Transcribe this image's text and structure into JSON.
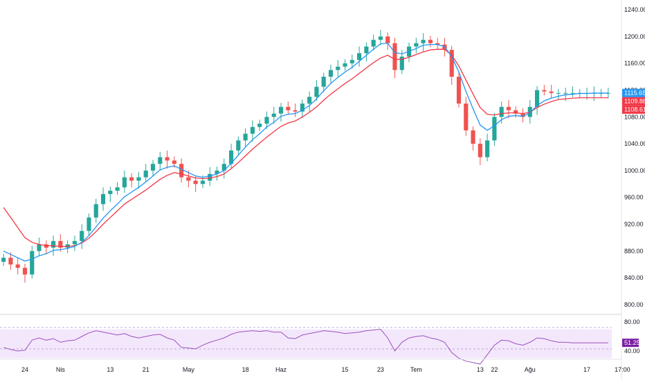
{
  "colors": {
    "background": "#ffffff",
    "up_candle": "#26a69a",
    "down_candle": "#ef5350",
    "ema_fast": "#2196f3",
    "ema_slow": "#f23645",
    "rsi_line": "#9c4fbd",
    "rsi_band": "#f3e8fb",
    "rsi_badge": "#7b1fa2",
    "axis_text": "#131722",
    "pane_separator": "#d1d4dc",
    "scale_border": "#e0e3eb"
  },
  "price_scale": {
    "min": 800,
    "max": 1240,
    "ticks": [
      "1240.00",
      "1200.00",
      "1160.00",
      "1120.00",
      "1080.00",
      "1040.00",
      "1000.00",
      "960.00",
      "920.00",
      "880.00",
      "840.00",
      "800.00"
    ]
  },
  "price_labels": [
    {
      "text": "1115.65",
      "value": 1115.65,
      "color": "#2196f3"
    },
    {
      "text": "1109.88",
      "value": 1109.88,
      "color": "#f23645"
    },
    {
      "text": "1108.61",
      "value": 1108.61,
      "color": "#f23645"
    }
  ],
  "rsi_scale": {
    "ticks": [
      "80.00",
      "40.00"
    ],
    "band": [
      70,
      30
    ],
    "current_label": "51.25",
    "current": 51.25
  },
  "time_axis": {
    "labels": [
      {
        "text": "24",
        "index": 3
      },
      {
        "text": "Nis",
        "index": 8
      },
      {
        "text": "13",
        "index": 15
      },
      {
        "text": "21",
        "index": 20
      },
      {
        "text": "May",
        "index": 26
      },
      {
        "text": "18",
        "index": 34
      },
      {
        "text": "Haz",
        "index": 39
      },
      {
        "text": "15",
        "index": 48
      },
      {
        "text": "23",
        "index": 53
      },
      {
        "text": "Tem",
        "index": 58
      },
      {
        "text": "13",
        "index": 67
      },
      {
        "text": "22",
        "index": 69
      },
      {
        "text": "Ağu",
        "index": 74
      },
      {
        "text": "17",
        "index": 82
      },
      {
        "text": "17:00",
        "index": 87
      }
    ]
  },
  "chart_data": {
    "type": "line",
    "title": "",
    "xlabel": "",
    "ylabel": "",
    "candle_count": 86,
    "close": [
      870,
      860,
      855,
      845,
      880,
      890,
      885,
      895,
      885,
      890,
      895,
      910,
      930,
      950,
      965,
      970,
      975,
      990,
      985,
      990,
      1000,
      1010,
      1020,
      1015,
      1010,
      990,
      985,
      980,
      985,
      995,
      1000,
      1010,
      1030,
      1045,
      1055,
      1065,
      1070,
      1080,
      1085,
      1095,
      1090,
      1088,
      1100,
      1110,
      1125,
      1140,
      1150,
      1155,
      1160,
      1165,
      1175,
      1185,
      1195,
      1200,
      1190,
      1150,
      1170,
      1185,
      1190,
      1195,
      1190,
      1188,
      1180,
      1140,
      1100,
      1060,
      1040,
      1020,
      1045,
      1080,
      1095,
      1090,
      1085,
      1080,
      1095,
      1120,
      1118,
      1115.65,
      1115.65,
      1115.65,
      1115.65,
      1115.65,
      1115.65,
      1115.65,
      1115.65,
      1115.65
    ],
    "ema_fast": [
      880,
      875,
      870,
      865,
      868,
      873,
      876,
      881,
      882,
      884,
      887,
      893,
      903,
      916,
      929,
      940,
      950,
      961,
      968,
      975,
      983,
      992,
      1001,
      1005,
      1007,
      1002,
      997,
      992,
      990,
      992,
      995,
      1000,
      1011,
      1023,
      1035,
      1046,
      1055,
      1065,
      1072,
      1081,
      1084,
      1085,
      1090,
      1097,
      1107,
      1119,
      1130,
      1139,
      1147,
      1154,
      1163,
      1172,
      1181,
      1189,
      1190,
      1176,
      1174,
      1178,
      1182,
      1187,
      1188,
      1188,
      1185,
      1170,
      1147,
      1118,
      1092,
      1068,
      1060,
      1067,
      1076,
      1081,
      1082,
      1081,
      1086,
      1097,
      1104,
      1108,
      1111,
      1113,
      1114,
      1115,
      1115,
      1115.65,
      1115.65,
      1115.65
    ],
    "ema_slow": [
      945,
      930,
      915,
      900,
      893,
      890,
      888,
      888,
      887,
      887,
      888,
      892,
      899,
      909,
      920,
      930,
      940,
      950,
      957,
      964,
      971,
      979,
      987,
      993,
      997,
      995,
      992,
      989,
      988,
      989,
      991,
      995,
      1003,
      1012,
      1022,
      1032,
      1041,
      1050,
      1058,
      1066,
      1071,
      1074,
      1080,
      1087,
      1095,
      1105,
      1114,
      1122,
      1130,
      1137,
      1145,
      1153,
      1161,
      1168,
      1172,
      1166,
      1166,
      1169,
      1173,
      1177,
      1180,
      1181,
      1181,
      1172,
      1156,
      1135,
      1114,
      1094,
      1084,
      1083,
      1085,
      1086,
      1086,
      1085,
      1087,
      1094,
      1099,
      1103,
      1106,
      1107,
      1108,
      1108.61,
      1108.61,
      1108.61,
      1108.61,
      1108.61
    ],
    "rsi": [
      45,
      42,
      40,
      41,
      55,
      58,
      55,
      57,
      52,
      54,
      55,
      60,
      65,
      68,
      66,
      64,
      62,
      64,
      60,
      58,
      60,
      62,
      63,
      58,
      55,
      45,
      44,
      43,
      48,
      52,
      55,
      58,
      63,
      66,
      67,
      68,
      67,
      68,
      66,
      66,
      58,
      57,
      62,
      64,
      66,
      68,
      67,
      66,
      64,
      65,
      66,
      68,
      69,
      70,
      58,
      40,
      52,
      58,
      60,
      61,
      58,
      56,
      52,
      38,
      30,
      26,
      24,
      22,
      35,
      48,
      55,
      54,
      50,
      48,
      52,
      58,
      57,
      54,
      52,
      52,
      51.25,
      51.25,
      51.25,
      51.25,
      51.25,
      51.25
    ]
  }
}
